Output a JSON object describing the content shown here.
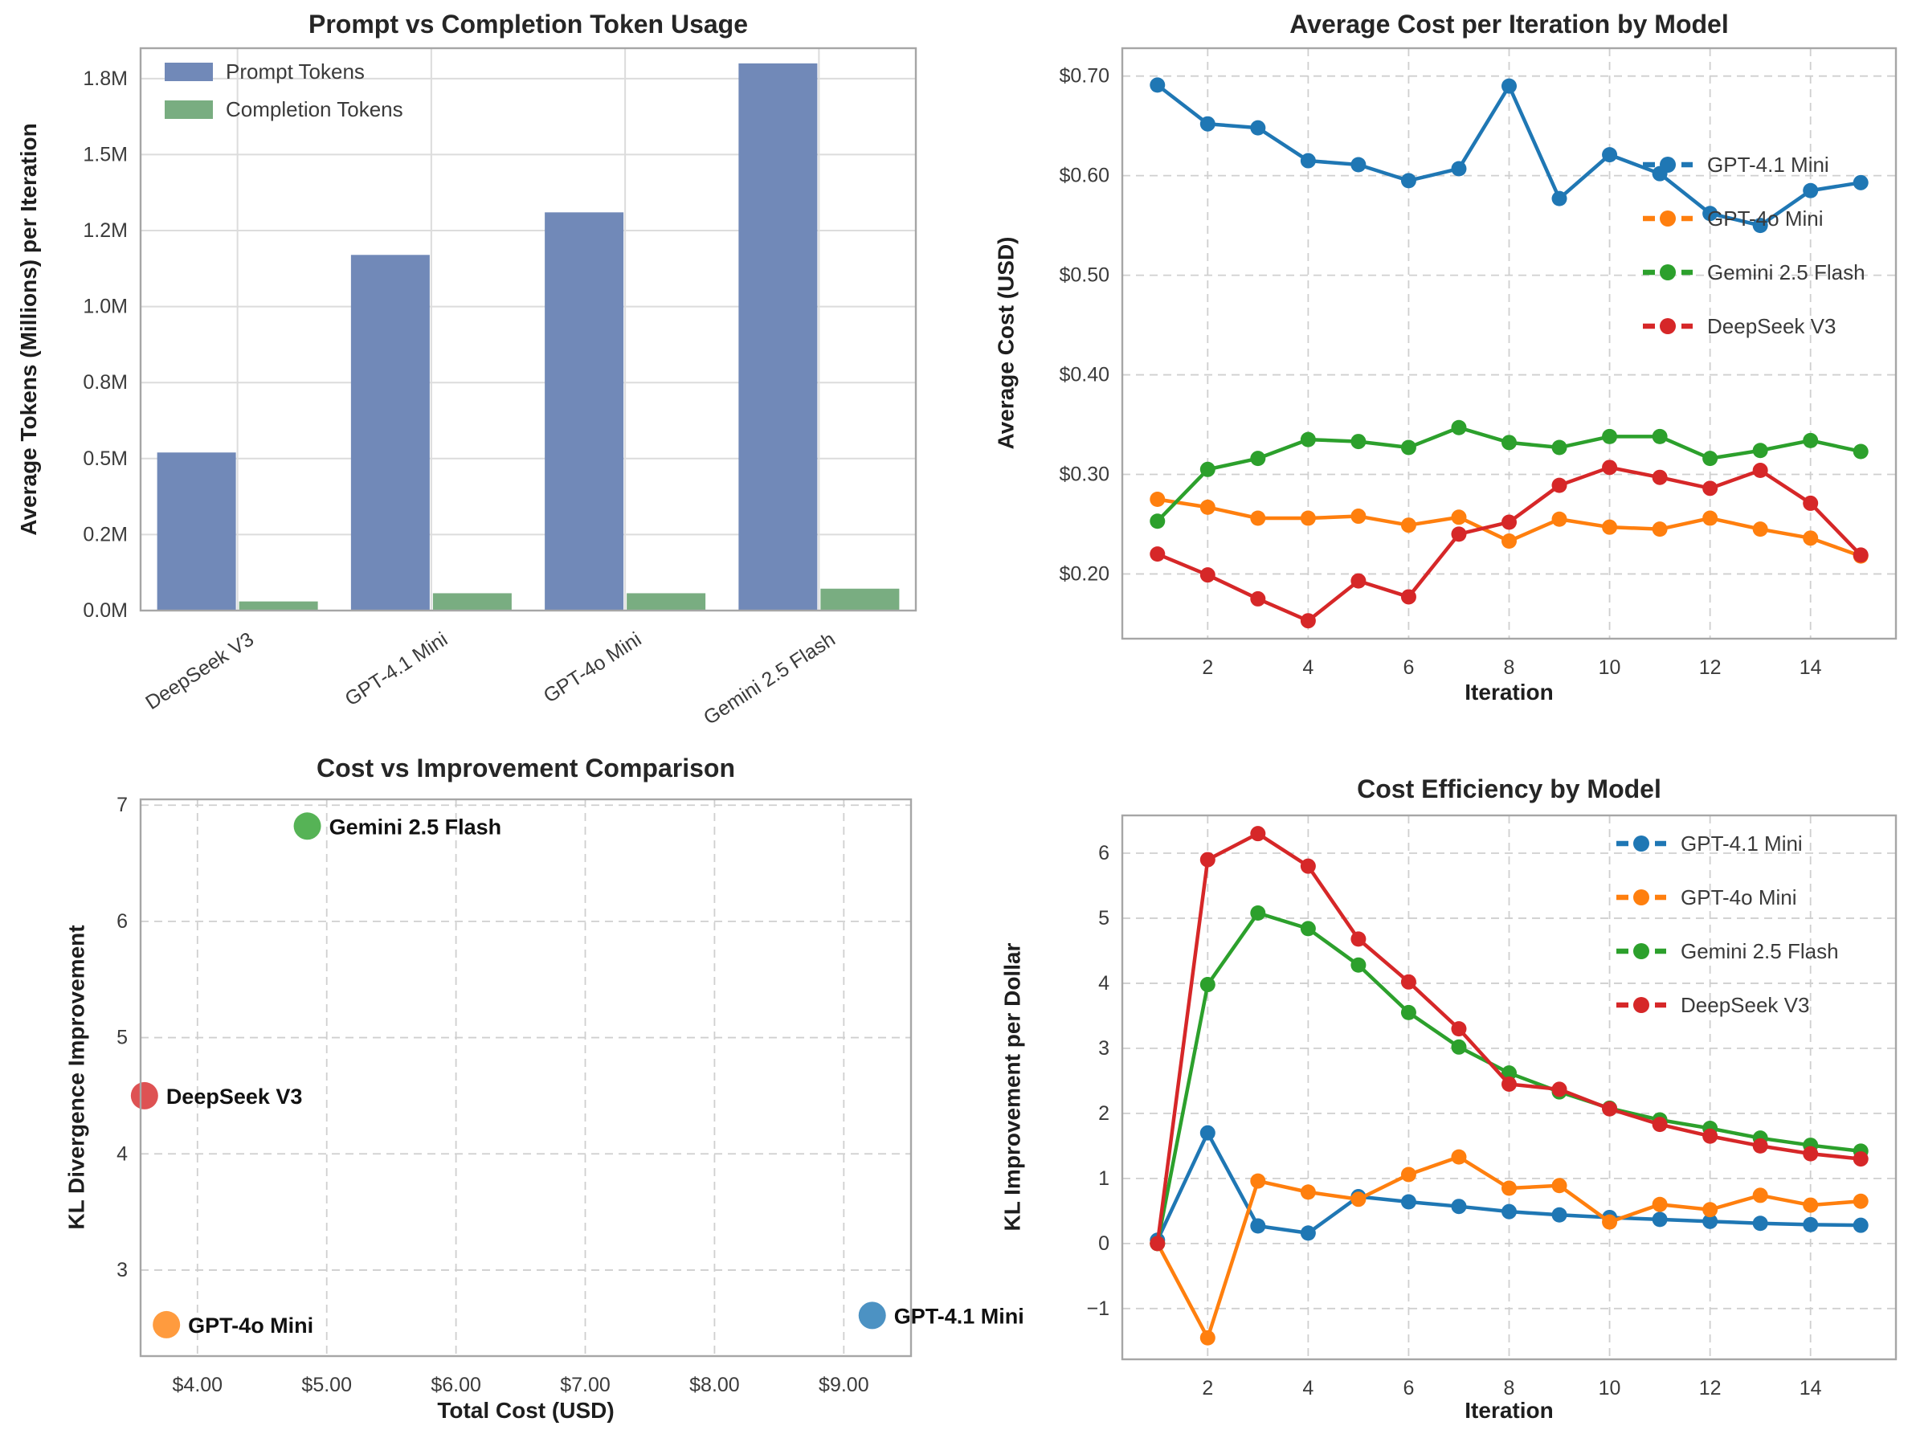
{
  "figure": {
    "background": "#ffffff"
  },
  "chart_data": [
    {
      "type": "bar",
      "title": "Prompt vs Completion Token Usage",
      "ylabel": "Average Tokens (Millions) per Iteration",
      "categories": [
        "DeepSeek V3",
        "GPT-4.1 Mini",
        "GPT-4o Mini",
        "Gemini 2.5 Flash"
      ],
      "series": [
        {
          "name": "Prompt Tokens",
          "color": "#7189b8",
          "values": [
            0.52,
            1.17,
            1.31,
            1.8
          ]
        },
        {
          "name": "Completion Tokens",
          "color": "#79ad81",
          "values": [
            0.03,
            0.057,
            0.057,
            0.072
          ]
        }
      ],
      "ylim": [
        0,
        1.85
      ],
      "yticks": {
        "values": [
          0,
          0.25,
          0.5,
          0.75,
          1.0,
          1.25,
          1.5,
          1.75
        ],
        "labels": [
          "0.0M",
          "0.2M",
          "0.5M",
          "0.8M",
          "1.0M",
          "1.2M",
          "1.5M",
          "1.8M"
        ]
      },
      "grid": "solid",
      "legend_position": "upper left"
    },
    {
      "type": "line",
      "title": "Average Cost per Iteration by Model",
      "xlabel": "Iteration",
      "ylabel": "Average Cost (USD)",
      "x": [
        1,
        2,
        3,
        4,
        5,
        6,
        7,
        8,
        9,
        10,
        11,
        12,
        13,
        14,
        15
      ],
      "xticks": {
        "values": [
          2,
          4,
          6,
          8,
          10,
          12,
          14
        ],
        "labels": [
          "2",
          "4",
          "6",
          "8",
          "10",
          "12",
          "14"
        ]
      },
      "yticks": {
        "values": [
          0.2,
          0.3,
          0.4,
          0.5,
          0.6,
          0.7
        ],
        "labels": [
          "$0.20",
          "$0.30",
          "$0.40",
          "$0.50",
          "$0.60",
          "$0.70"
        ]
      },
      "xlim": [
        0.3,
        15.7
      ],
      "ylim": [
        0.135,
        0.728
      ],
      "series": [
        {
          "name": "GPT-4.1 Mini",
          "color": "#1f77b4",
          "values": [
            0.691,
            0.652,
            0.648,
            0.615,
            0.611,
            0.595,
            0.607,
            0.69,
            0.577,
            0.621,
            0.602,
            0.562,
            0.55,
            0.585,
            0.593
          ]
        },
        {
          "name": "GPT-4o Mini",
          "color": "#ff7f0e",
          "values": [
            0.275,
            0.267,
            0.256,
            0.256,
            0.258,
            0.249,
            0.257,
            0.233,
            0.255,
            0.247,
            0.245,
            0.256,
            0.245,
            0.236,
            0.218
          ]
        },
        {
          "name": "Gemini 2.5 Flash",
          "color": "#2ca02c",
          "values": [
            0.253,
            0.305,
            0.316,
            0.335,
            0.333,
            0.327,
            0.347,
            0.332,
            0.327,
            0.338,
            0.338,
            0.316,
            0.324,
            0.334,
            0.323
          ]
        },
        {
          "name": "DeepSeek V3",
          "color": "#d62728",
          "values": [
            0.22,
            0.199,
            0.175,
            0.153,
            0.193,
            0.177,
            0.24,
            0.252,
            0.289,
            0.307,
            0.297,
            0.286,
            0.304,
            0.271,
            0.219
          ]
        }
      ],
      "grid": "dashed",
      "legend_position": "center right"
    },
    {
      "type": "scatter",
      "title": "Cost vs Improvement Comparison",
      "xlabel": "Total Cost (USD)",
      "ylabel": "KL Divergence Improvement",
      "points": [
        {
          "label": "GPT-4.1 Mini",
          "x": 9.22,
          "y": 2.61,
          "color": "#4c92c3"
        },
        {
          "label": "GPT-4o Mini",
          "x": 3.76,
          "y": 2.53,
          "color": "#ff9b3e"
        },
        {
          "label": "Gemini 2.5 Flash",
          "x": 4.85,
          "y": 6.82,
          "color": "#56b356"
        },
        {
          "label": "DeepSeek V3",
          "x": 3.59,
          "y": 4.5,
          "color": "#de5253"
        }
      ],
      "xticks": {
        "values": [
          4,
          5,
          6,
          7,
          8,
          9
        ],
        "labels": [
          "$4.00",
          "$5.00",
          "$6.00",
          "$7.00",
          "$8.00",
          "$9.00"
        ]
      },
      "yticks": {
        "values": [
          3,
          4,
          5,
          6,
          7
        ],
        "labels": [
          "3",
          "4",
          "5",
          "6",
          "7"
        ]
      },
      "xlim": [
        3.56,
        9.52
      ],
      "ylim": [
        2.26,
        7.05
      ],
      "grid": "dashed"
    },
    {
      "type": "line",
      "title": "Cost Efficiency by Model",
      "xlabel": "Iteration",
      "ylabel": "KL Improvement per Dollar",
      "x": [
        1,
        2,
        3,
        4,
        5,
        6,
        7,
        8,
        9,
        10,
        11,
        12,
        13,
        14,
        15
      ],
      "xticks": {
        "values": [
          2,
          4,
          6,
          8,
          10,
          12,
          14
        ],
        "labels": [
          "2",
          "4",
          "6",
          "8",
          "10",
          "12",
          "14"
        ]
      },
      "yticks": {
        "values": [
          -1,
          0,
          1,
          2,
          3,
          4,
          5,
          6
        ],
        "labels": [
          "−1",
          "0",
          "1",
          "2",
          "3",
          "4",
          "5",
          "6"
        ]
      },
      "xlim": [
        0.3,
        15.7
      ],
      "ylim": [
        -1.78,
        6.58
      ],
      "series": [
        {
          "name": "GPT-4.1 Mini",
          "color": "#1f77b4",
          "values": [
            0.05,
            1.7,
            0.27,
            0.16,
            0.72,
            0.64,
            0.57,
            0.49,
            0.44,
            0.4,
            0.37,
            0.34,
            0.31,
            0.29,
            0.28
          ]
        },
        {
          "name": "GPT-4o Mini",
          "color": "#ff7f0e",
          "values": [
            0.0,
            -1.45,
            0.96,
            0.79,
            0.68,
            1.06,
            1.33,
            0.85,
            0.89,
            0.33,
            0.6,
            0.52,
            0.74,
            0.59,
            0.65
          ]
        },
        {
          "name": "Gemini 2.5 Flash",
          "color": "#2ca02c",
          "values": [
            0.0,
            3.98,
            5.08,
            4.84,
            4.28,
            3.55,
            3.02,
            2.62,
            2.33,
            2.08,
            1.9,
            1.77,
            1.62,
            1.51,
            1.42
          ]
        },
        {
          "name": "DeepSeek V3",
          "color": "#d62728",
          "values": [
            0.0,
            5.9,
            6.3,
            5.8,
            4.68,
            4.02,
            3.3,
            2.45,
            2.37,
            2.07,
            1.83,
            1.65,
            1.5,
            1.38,
            1.3
          ]
        }
      ],
      "grid": "dashed",
      "legend_position": "upper right"
    }
  ]
}
